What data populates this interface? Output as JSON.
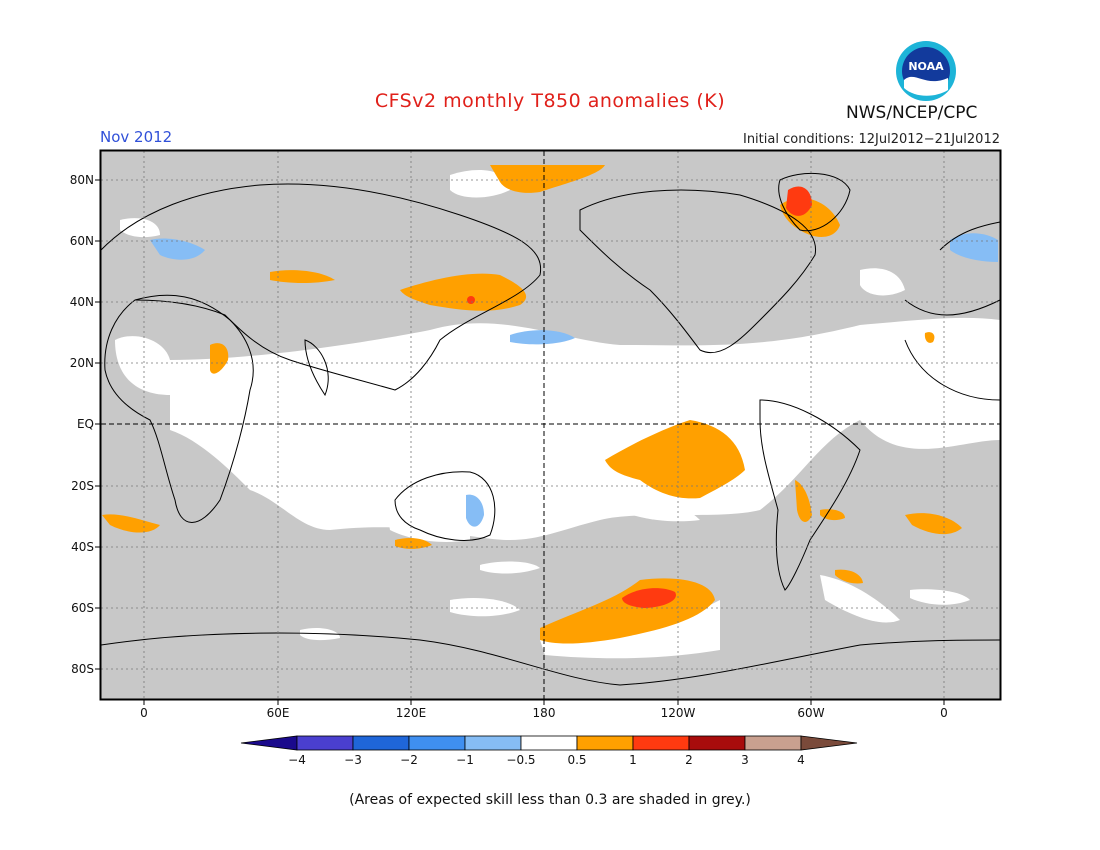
{
  "title": "CFSv2 monthly T850 anomalies (K)",
  "valid_month": "Nov 2012",
  "initial_conditions": "Initial conditions: 12Jul2012−21Jul2012",
  "agency": "NWS/NCEP/CPC",
  "logo_text": "NOAA",
  "lat_labels": [
    "80N",
    "60N",
    "40N",
    "20N",
    "EQ",
    "20S",
    "40S",
    "60S",
    "80S"
  ],
  "lon_labels": [
    "0",
    "60E",
    "120E",
    "180",
    "120W",
    "60W",
    "0"
  ],
  "colorbar": {
    "labels": [
      "−4",
      "−3",
      "−2",
      "−1",
      "−0.5",
      "0.5",
      "1",
      "2",
      "3",
      "4"
    ],
    "colors": [
      "#1a0a8c",
      "#4a3fcf",
      "#1f66d9",
      "#3f8ff0",
      "#86bdf5",
      "#ffffff",
      "#ffa000",
      "#ff3a10",
      "#a80c0c",
      "#c9a08f",
      "#7a4a3a"
    ]
  },
  "colors": {
    "grey_mask": "#c8c8c8",
    "title": "#e0201a",
    "valid_month": "#3050d8"
  },
  "footnote": "(Areas of expected skill less than 0.3 are shaded in grey.)"
}
